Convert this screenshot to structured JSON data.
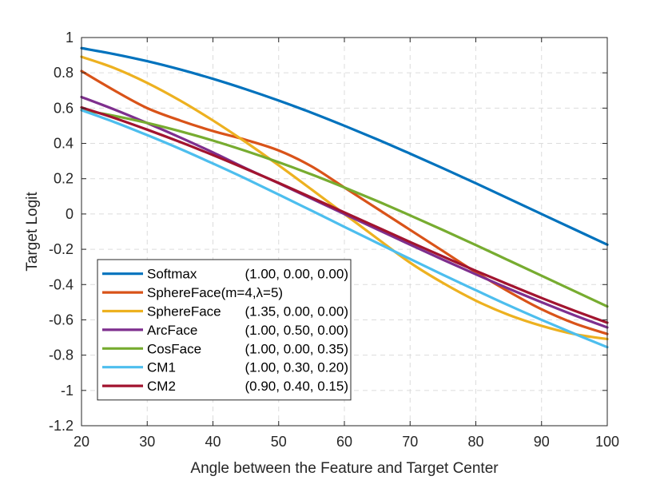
{
  "chart_data": {
    "type": "line",
    "title": "",
    "xlabel": "Angle between the Feature and Target Center",
    "ylabel": "Target Logit",
    "xlim": [
      20,
      100
    ],
    "ylim": [
      -1.2,
      1
    ],
    "xticks": [
      "20",
      "30",
      "40",
      "50",
      "60",
      "70",
      "80",
      "90",
      "100"
    ],
    "yticks": [
      "1",
      "0.8",
      "0.6",
      "0.4",
      "0.2",
      "0",
      "-0.2",
      "-0.4",
      "-0.6",
      "-0.8",
      "-1",
      "-1.2"
    ],
    "grid": true,
    "legend_position": "bottom-left",
    "x": [
      20,
      25,
      30,
      35,
      40,
      45,
      50,
      55,
      60,
      65,
      70,
      75,
      80,
      85,
      90,
      95,
      100
    ],
    "series": [
      {
        "name": "Softmax",
        "params": "(1.00, 0.00, 0.00)",
        "color": "#0072BD",
        "values": [
          0.94,
          0.906,
          0.866,
          0.819,
          0.766,
          0.707,
          0.643,
          0.574,
          0.5,
          0.423,
          0.342,
          0.259,
          0.174,
          0.087,
          0.0,
          -0.087,
          -0.174
        ]
      },
      {
        "name": "SphereFace(m=4,λ=5)",
        "params": "",
        "color": "#D95319",
        "values": [
          0.81,
          0.7,
          0.6,
          0.53,
          0.47,
          0.42,
          0.36,
          0.27,
          0.15,
          0.03,
          -0.09,
          -0.21,
          -0.33,
          -0.44,
          -0.54,
          -0.62,
          -0.68
        ]
      },
      {
        "name": "SphereFace",
        "params": "(1.35, 0.00, 0.00)",
        "color": "#EDB120",
        "values": [
          0.891,
          0.827,
          0.743,
          0.643,
          0.53,
          0.407,
          0.276,
          0.139,
          0.0,
          -0.139,
          -0.276,
          -0.391,
          -0.491,
          -0.572,
          -0.634,
          -0.681,
          -0.709
        ]
      },
      {
        "name": "ArcFace",
        "params": "(1.00, 0.50, 0.00)",
        "color": "#7E2F8E",
        "values": [
          0.663,
          0.592,
          0.515,
          0.434,
          0.349,
          0.259,
          0.174,
          0.087,
          0.0,
          -0.087,
          -0.174,
          -0.259,
          -0.342,
          -0.423,
          -0.5,
          -0.574,
          -0.643
        ]
      },
      {
        "name": "CosFace",
        "params": "(1.00, 0.00, 0.35)",
        "color": "#77AC30",
        "values": [
          0.59,
          0.556,
          0.516,
          0.469,
          0.416,
          0.357,
          0.293,
          0.224,
          0.15,
          0.073,
          -0.008,
          -0.091,
          -0.176,
          -0.263,
          -0.35,
          -0.437,
          -0.524
        ]
      },
      {
        "name": "CM1",
        "params": "(1.00, 0.30, 0.20)",
        "color": "#4DBEEE",
        "values": [
          0.588,
          0.521,
          0.447,
          0.369,
          0.286,
          0.2,
          0.11,
          0.019,
          -0.073,
          -0.164,
          -0.255,
          -0.345,
          -0.432,
          -0.518,
          -0.6,
          -0.679,
          -0.755
        ]
      },
      {
        "name": "CM2",
        "params": "(0.90, 0.40, 0.15)",
        "color": "#A2142F",
        "values": [
          0.604,
          0.544,
          0.478,
          0.408,
          0.334,
          0.256,
          0.176,
          0.093,
          0.009,
          -0.075,
          -0.159,
          -0.241,
          -0.322,
          -0.4,
          -0.476,
          -0.548,
          -0.616
        ]
      }
    ]
  }
}
